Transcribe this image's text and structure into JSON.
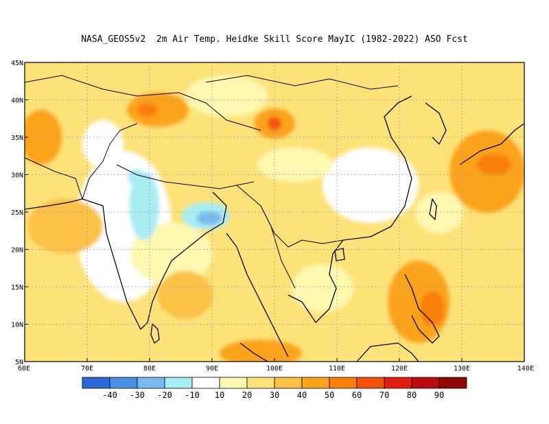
{
  "title": "NASA_GEOS5v2  2m Air Temp. Heidke Skill Score MayIC (1982-2022) ASO Fcst",
  "map": {
    "lon_range": [
      60,
      140
    ],
    "lat_range": [
      5,
      45
    ],
    "lon_ticks": [
      "60E",
      "70E",
      "80E",
      "90E",
      "100E",
      "110E",
      "120E",
      "130E",
      "140E"
    ],
    "lat_ticks": [
      "5N",
      "10N",
      "15N",
      "20N",
      "25N",
      "30N",
      "35N",
      "40N",
      "45N"
    ],
    "grid": "dotted"
  },
  "colorbar": {
    "colors": [
      "#2a6ad6",
      "#4a8fe6",
      "#7ab8f0",
      "#a8ecf4",
      "#ffffff",
      "#fff8b0",
      "#fde27a",
      "#fcc147",
      "#fca31c",
      "#f97f0c",
      "#f4510c",
      "#e2200f",
      "#b80d0d",
      "#8f0808"
    ],
    "labels": [
      "-40",
      "-30",
      "-20",
      "-10",
      "10",
      "20",
      "30",
      "40",
      "50",
      "60",
      "70",
      "80",
      "90"
    ]
  }
}
